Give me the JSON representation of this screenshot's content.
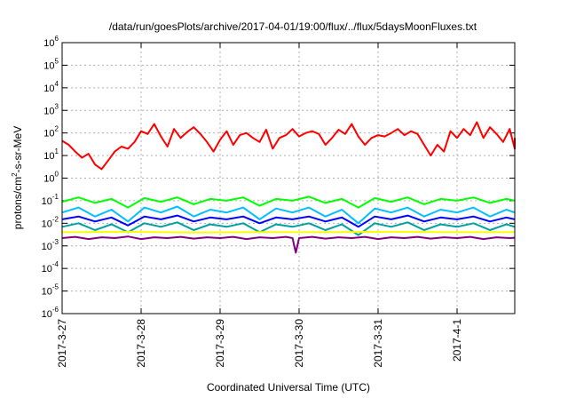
{
  "chart_data": {
    "type": "line",
    "title": "/data/run/goesPlots/archive/2017-04-01/19:00/flux/../flux/5daysMoonFluxes.txt",
    "xlabel": "Coordinated Universal Time (UTC)",
    "ylabel": {
      "prefix": "protons/cm",
      "sup": "2",
      "suffix": "-s-sr-MeV"
    },
    "yscale": "log",
    "ylim": [
      1e-06,
      1000000.0
    ],
    "xlim": [
      "2017-03-27 00:00",
      "2017-04-01 19:00"
    ],
    "grid": true,
    "y_ticks": [
      {
        "base": "10",
        "exp": "-6"
      },
      {
        "base": "10",
        "exp": "-5"
      },
      {
        "base": "10",
        "exp": "-4"
      },
      {
        "base": "10",
        "exp": "-3"
      },
      {
        "base": "10",
        "exp": "-2"
      },
      {
        "base": "10",
        "exp": "-1"
      },
      {
        "base": "10",
        "exp": "0"
      },
      {
        "base": "10",
        "exp": "1"
      },
      {
        "base": "10",
        "exp": "2"
      },
      {
        "base": "10",
        "exp": "3"
      },
      {
        "base": "10",
        "exp": "4"
      },
      {
        "base": "10",
        "exp": "5"
      },
      {
        "base": "10",
        "exp": "6"
      }
    ],
    "x_ticks": [
      "2017-3-27",
      "2017-3-28",
      "2017-3-29",
      "2017-3-30",
      "2017-3-31",
      "2017-4-1"
    ],
    "series": [
      {
        "color": "#ff0000",
        "values": [
          [
            0,
            45
          ],
          [
            2,
            30
          ],
          [
            4,
            15
          ],
          [
            6,
            8
          ],
          [
            8,
            12
          ],
          [
            10,
            4
          ],
          [
            12,
            2.5
          ],
          [
            14,
            6
          ],
          [
            16,
            15
          ],
          [
            18,
            25
          ],
          [
            20,
            20
          ],
          [
            22,
            40
          ],
          [
            24,
            120
          ],
          [
            26,
            90
          ],
          [
            28,
            250
          ],
          [
            30,
            70
          ],
          [
            32,
            25
          ],
          [
            34,
            150
          ],
          [
            36,
            60
          ],
          [
            38,
            110
          ],
          [
            40,
            180
          ],
          [
            42,
            90
          ],
          [
            44,
            40
          ],
          [
            46,
            15
          ],
          [
            48,
            50
          ],
          [
            50,
            120
          ],
          [
            52,
            30
          ],
          [
            54,
            80
          ],
          [
            56,
            100
          ],
          [
            58,
            60
          ],
          [
            60,
            40
          ],
          [
            62,
            140
          ],
          [
            64,
            20
          ],
          [
            66,
            60
          ],
          [
            68,
            80
          ],
          [
            70,
            150
          ],
          [
            72,
            70
          ],
          [
            74,
            100
          ],
          [
            76,
            120
          ],
          [
            78,
            90
          ],
          [
            80,
            30
          ],
          [
            82,
            60
          ],
          [
            84,
            140
          ],
          [
            86,
            90
          ],
          [
            88,
            250
          ],
          [
            90,
            70
          ],
          [
            92,
            30
          ],
          [
            94,
            60
          ],
          [
            96,
            80
          ],
          [
            98,
            70
          ],
          [
            100,
            100
          ],
          [
            102,
            150
          ],
          [
            104,
            80
          ],
          [
            106,
            120
          ],
          [
            108,
            90
          ],
          [
            110,
            30
          ],
          [
            112,
            10
          ],
          [
            114,
            30
          ],
          [
            116,
            15
          ],
          [
            118,
            120
          ],
          [
            120,
            60
          ],
          [
            122,
            150
          ],
          [
            124,
            80
          ],
          [
            126,
            300
          ],
          [
            128,
            60
          ],
          [
            130,
            180
          ],
          [
            132,
            90
          ],
          [
            134,
            40
          ],
          [
            136,
            150
          ],
          [
            138,
            20
          ],
          [
            140,
            60
          ]
        ]
      },
      {
        "color": "#00ff00",
        "values": [
          [
            0,
            0.09
          ],
          [
            5,
            0.14
          ],
          [
            10,
            0.08
          ],
          [
            15,
            0.12
          ],
          [
            20,
            0.05
          ],
          [
            25,
            0.13
          ],
          [
            30,
            0.09
          ],
          [
            35,
            0.14
          ],
          [
            40,
            0.07
          ],
          [
            45,
            0.12
          ],
          [
            50,
            0.1
          ],
          [
            55,
            0.14
          ],
          [
            60,
            0.06
          ],
          [
            65,
            0.12
          ],
          [
            70,
            0.1
          ],
          [
            75,
            0.15
          ],
          [
            80,
            0.08
          ],
          [
            85,
            0.12
          ],
          [
            90,
            0.05
          ],
          [
            95,
            0.13
          ],
          [
            100,
            0.09
          ],
          [
            105,
            0.14
          ],
          [
            110,
            0.07
          ],
          [
            115,
            0.12
          ],
          [
            120,
            0.1
          ],
          [
            125,
            0.14
          ],
          [
            130,
            0.08
          ],
          [
            135,
            0.12
          ],
          [
            140,
            0.1
          ]
        ]
      },
      {
        "color": "#00bfff",
        "values": [
          [
            0,
            0.03
          ],
          [
            5,
            0.05
          ],
          [
            10,
            0.02
          ],
          [
            15,
            0.04
          ],
          [
            20,
            0.012
          ],
          [
            25,
            0.05
          ],
          [
            30,
            0.03
          ],
          [
            35,
            0.055
          ],
          [
            40,
            0.02
          ],
          [
            45,
            0.04
          ],
          [
            50,
            0.03
          ],
          [
            55,
            0.05
          ],
          [
            60,
            0.015
          ],
          [
            65,
            0.045
          ],
          [
            70,
            0.03
          ],
          [
            75,
            0.05
          ],
          [
            80,
            0.02
          ],
          [
            85,
            0.04
          ],
          [
            90,
            0.01
          ],
          [
            95,
            0.045
          ],
          [
            100,
            0.03
          ],
          [
            105,
            0.05
          ],
          [
            110,
            0.02
          ],
          [
            115,
            0.04
          ],
          [
            120,
            0.03
          ],
          [
            125,
            0.05
          ],
          [
            130,
            0.02
          ],
          [
            135,
            0.04
          ],
          [
            140,
            0.03
          ]
        ]
      },
      {
        "color": "#0000ff",
        "values": [
          [
            0,
            0.015
          ],
          [
            5,
            0.02
          ],
          [
            10,
            0.012
          ],
          [
            15,
            0.018
          ],
          [
            20,
            0.008
          ],
          [
            25,
            0.02
          ],
          [
            30,
            0.015
          ],
          [
            35,
            0.022
          ],
          [
            40,
            0.012
          ],
          [
            45,
            0.018
          ],
          [
            50,
            0.015
          ],
          [
            55,
            0.02
          ],
          [
            60,
            0.01
          ],
          [
            65,
            0.018
          ],
          [
            70,
            0.015
          ],
          [
            75,
            0.02
          ],
          [
            80,
            0.012
          ],
          [
            85,
            0.018
          ],
          [
            90,
            0.007
          ],
          [
            95,
            0.02
          ],
          [
            100,
            0.015
          ],
          [
            105,
            0.022
          ],
          [
            110,
            0.012
          ],
          [
            115,
            0.018
          ],
          [
            120,
            0.015
          ],
          [
            125,
            0.02
          ],
          [
            130,
            0.012
          ],
          [
            135,
            0.018
          ],
          [
            140,
            0.015
          ]
        ]
      },
      {
        "color": "#00a0a0",
        "values": [
          [
            0,
            0.007
          ],
          [
            5,
            0.01
          ],
          [
            10,
            0.005
          ],
          [
            15,
            0.009
          ],
          [
            20,
            0.004
          ],
          [
            25,
            0.01
          ],
          [
            30,
            0.007
          ],
          [
            35,
            0.011
          ],
          [
            40,
            0.005
          ],
          [
            45,
            0.009
          ],
          [
            50,
            0.007
          ],
          [
            55,
            0.01
          ],
          [
            60,
            0.004
          ],
          [
            65,
            0.009
          ],
          [
            70,
            0.007
          ],
          [
            75,
            0.01
          ],
          [
            80,
            0.005
          ],
          [
            85,
            0.009
          ],
          [
            90,
            0.003
          ],
          [
            95,
            0.01
          ],
          [
            100,
            0.007
          ],
          [
            105,
            0.011
          ],
          [
            110,
            0.005
          ],
          [
            115,
            0.009
          ],
          [
            120,
            0.007
          ],
          [
            125,
            0.01
          ],
          [
            130,
            0.005
          ],
          [
            135,
            0.009
          ],
          [
            140,
            0.007
          ]
        ]
      },
      {
        "color": "#ffff00",
        "values": [
          [
            0,
            0.004
          ],
          [
            20,
            0.0042
          ],
          [
            40,
            0.0039
          ],
          [
            60,
            0.0041
          ],
          [
            80,
            0.004
          ],
          [
            100,
            0.0042
          ],
          [
            120,
            0.004
          ],
          [
            140,
            0.0041
          ]
        ]
      },
      {
        "color": "#800080",
        "values": [
          [
            0,
            0.0022
          ],
          [
            4,
            0.0025
          ],
          [
            8,
            0.002
          ],
          [
            12,
            0.0024
          ],
          [
            16,
            0.0022
          ],
          [
            20,
            0.0026
          ],
          [
            24,
            0.002
          ],
          [
            28,
            0.0024
          ],
          [
            32,
            0.0022
          ],
          [
            36,
            0.0025
          ],
          [
            40,
            0.0021
          ],
          [
            44,
            0.0024
          ],
          [
            48,
            0.0022
          ],
          [
            52,
            0.0025
          ],
          [
            56,
            0.002
          ],
          [
            60,
            0.0024
          ],
          [
            64,
            0.0022
          ],
          [
            68,
            0.0025
          ],
          [
            70,
            0.0022
          ],
          [
            71,
            0.0005
          ],
          [
            72,
            0.0022
          ],
          [
            76,
            0.0025
          ],
          [
            80,
            0.0021
          ],
          [
            84,
            0.0024
          ],
          [
            88,
            0.0022
          ],
          [
            92,
            0.0025
          ],
          [
            96,
            0.002
          ],
          [
            100,
            0.0024
          ],
          [
            104,
            0.0022
          ],
          [
            108,
            0.0025
          ],
          [
            112,
            0.0021
          ],
          [
            116,
            0.0024
          ],
          [
            120,
            0.0022
          ],
          [
            124,
            0.0025
          ],
          [
            128,
            0.002
          ],
          [
            132,
            0.0024
          ],
          [
            136,
            0.0022
          ],
          [
            140,
            0.0023
          ]
        ]
      }
    ]
  }
}
